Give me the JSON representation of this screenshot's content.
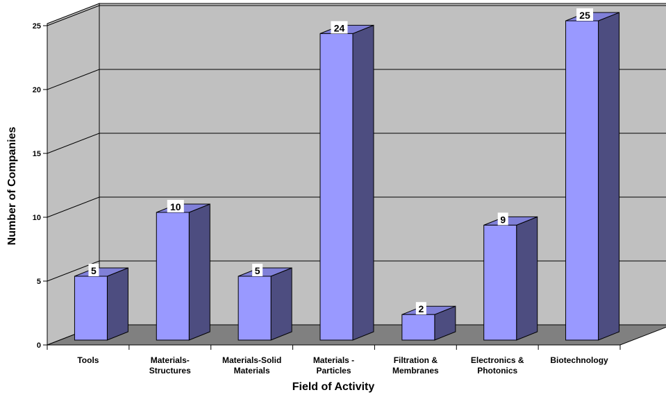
{
  "chart_data": {
    "type": "bar",
    "categories": [
      [
        "Tools"
      ],
      [
        "Materials-",
        "Structures"
      ],
      [
        "Materials-Solid",
        "Materials"
      ],
      [
        "Materials -",
        "Particles"
      ],
      [
        "Filtration &",
        "Membranes"
      ],
      [
        "Electronics &",
        "Photonics"
      ],
      [
        "Biotechnology"
      ]
    ],
    "values": [
      5,
      10,
      5,
      24,
      2,
      9,
      25
    ],
    "xlabel": "Field of Activity",
    "ylabel": "Number of Companies",
    "ylim": [
      0,
      25
    ],
    "yticks": [
      0,
      5,
      10,
      15,
      20,
      25
    ],
    "grid": true,
    "style": "3d",
    "colors": {
      "bar_front": "#9999ff",
      "bar_side": "#4d4d80",
      "bar_top": "#8080d8",
      "wall": "#c0c0c0",
      "floor": "#808080"
    }
  }
}
